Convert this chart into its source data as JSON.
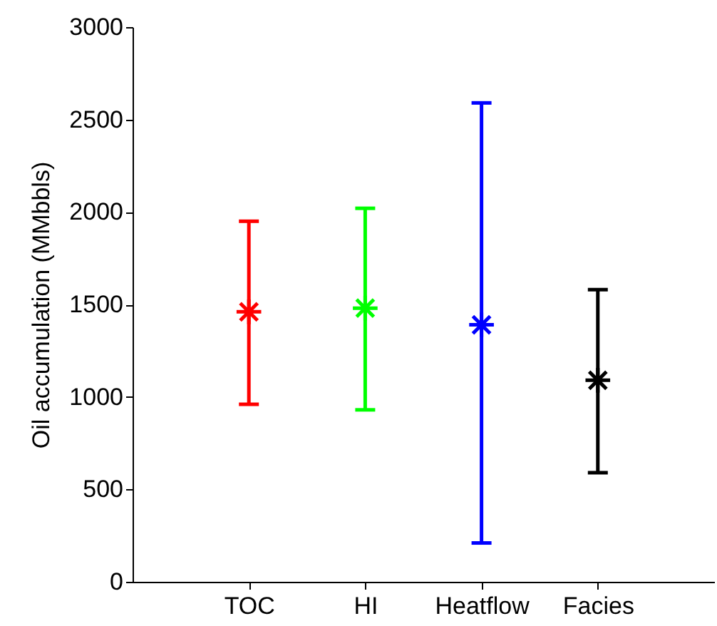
{
  "chart_data": {
    "type": "scatter",
    "ylabel": "Oil accumulation (MMbbls)",
    "categories": [
      "TOC",
      "HI",
      "Heatflow",
      "Facies"
    ],
    "values": [
      1460,
      1480,
      1390,
      1090
    ],
    "errors": [
      [
        960,
        1950
      ],
      [
        930,
        2020
      ],
      [
        210,
        2590
      ],
      [
        590,
        1580
      ]
    ],
    "colors": [
      "#ff0000",
      "#00ff00",
      "#0000ff",
      "#000000"
    ],
    "ylim": [
      0,
      3000
    ],
    "yticks": [
      0,
      500,
      1000,
      1500,
      2000,
      2500,
      3000
    ],
    "marker": "cross",
    "grid": false
  }
}
